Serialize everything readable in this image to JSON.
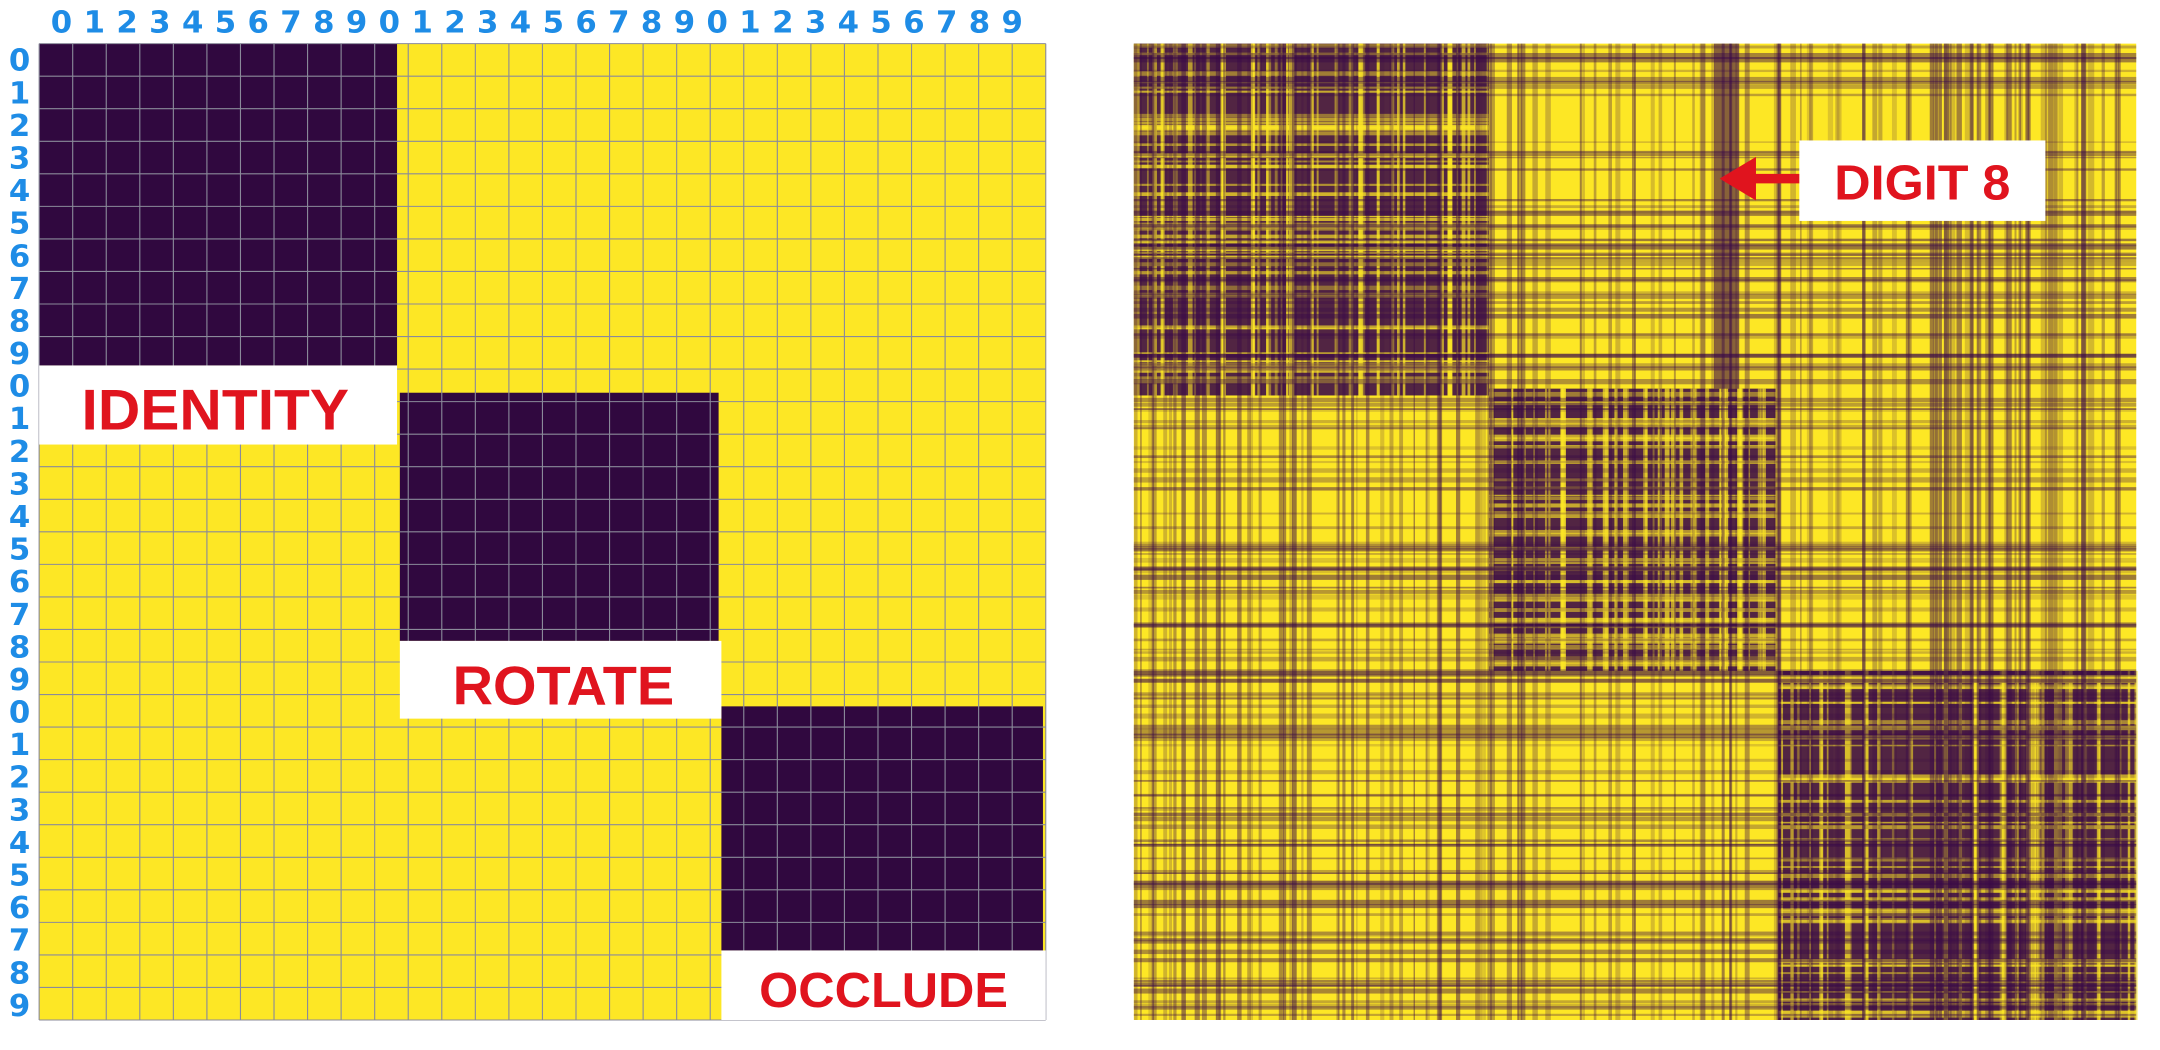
{
  "left_matrix": {
    "column_labels": [
      "0",
      "1",
      "2",
      "3",
      "4",
      "5",
      "6",
      "7",
      "8",
      "9",
      "0",
      "1",
      "2",
      "3",
      "4",
      "5",
      "6",
      "7",
      "8",
      "9",
      "0",
      "1",
      "2",
      "3",
      "4",
      "5",
      "6",
      "7",
      "8",
      "9"
    ],
    "row_labels": [
      "0",
      "1",
      "2",
      "3",
      "4",
      "5",
      "6",
      "7",
      "8",
      "9",
      "0",
      "1",
      "2",
      "3",
      "4",
      "5",
      "6",
      "7",
      "8",
      "9",
      "0",
      "1",
      "2",
      "3",
      "4",
      "5",
      "6",
      "7",
      "8",
      "9"
    ],
    "blocks": [
      {
        "label": "IDENTITY"
      },
      {
        "label": "ROTATE"
      },
      {
        "label": "OCCLUDE"
      }
    ]
  },
  "right_matrix": {
    "annotation": "DIGIT 8"
  }
}
